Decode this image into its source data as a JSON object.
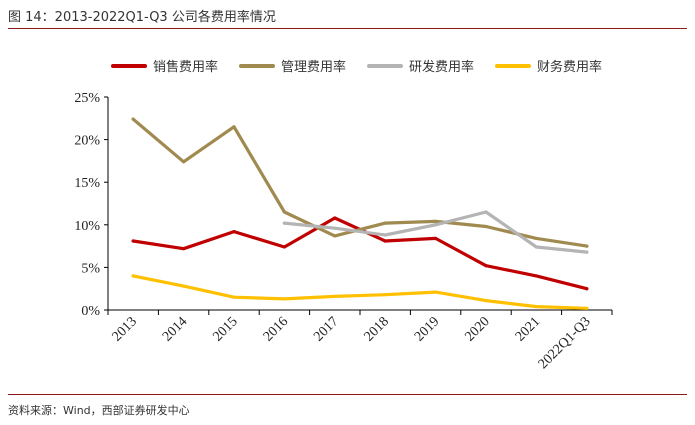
{
  "figure": {
    "title": "图 14：2013-2022Q1-Q3 公司各费用率情况",
    "source": "资料来源：Wind，西部证券研发中心"
  },
  "chart_data": {
    "type": "line",
    "categories": [
      "2013",
      "2014",
      "2015",
      "2016",
      "2017",
      "2018",
      "2019",
      "2020",
      "2021",
      "2022Q1-Q3"
    ],
    "y_ticks": [
      "0%",
      "5%",
      "10%",
      "15%",
      "20%",
      "25%"
    ],
    "ylim": [
      0,
      25
    ],
    "legend_position": "top",
    "grid": false,
    "series": [
      {
        "name": "销售费用率",
        "color": "#c00000",
        "values": [
          8.1,
          7.2,
          9.2,
          7.4,
          10.8,
          8.1,
          8.4,
          5.2,
          4.0,
          2.5
        ]
      },
      {
        "name": "管理费用率",
        "color": "#a08a50",
        "values": [
          22.4,
          17.4,
          21.5,
          11.5,
          8.7,
          10.2,
          10.4,
          9.8,
          8.4,
          7.5
        ]
      },
      {
        "name": "研发费用率",
        "color": "#b4b4b4",
        "values": [
          null,
          null,
          null,
          10.2,
          9.6,
          8.8,
          10.0,
          11.5,
          7.4,
          6.8
        ]
      },
      {
        "name": "财务费用率",
        "color": "#ffc000",
        "values": [
          4.0,
          2.8,
          1.5,
          1.3,
          1.6,
          1.8,
          2.1,
          1.1,
          0.4,
          0.2
        ]
      }
    ]
  }
}
